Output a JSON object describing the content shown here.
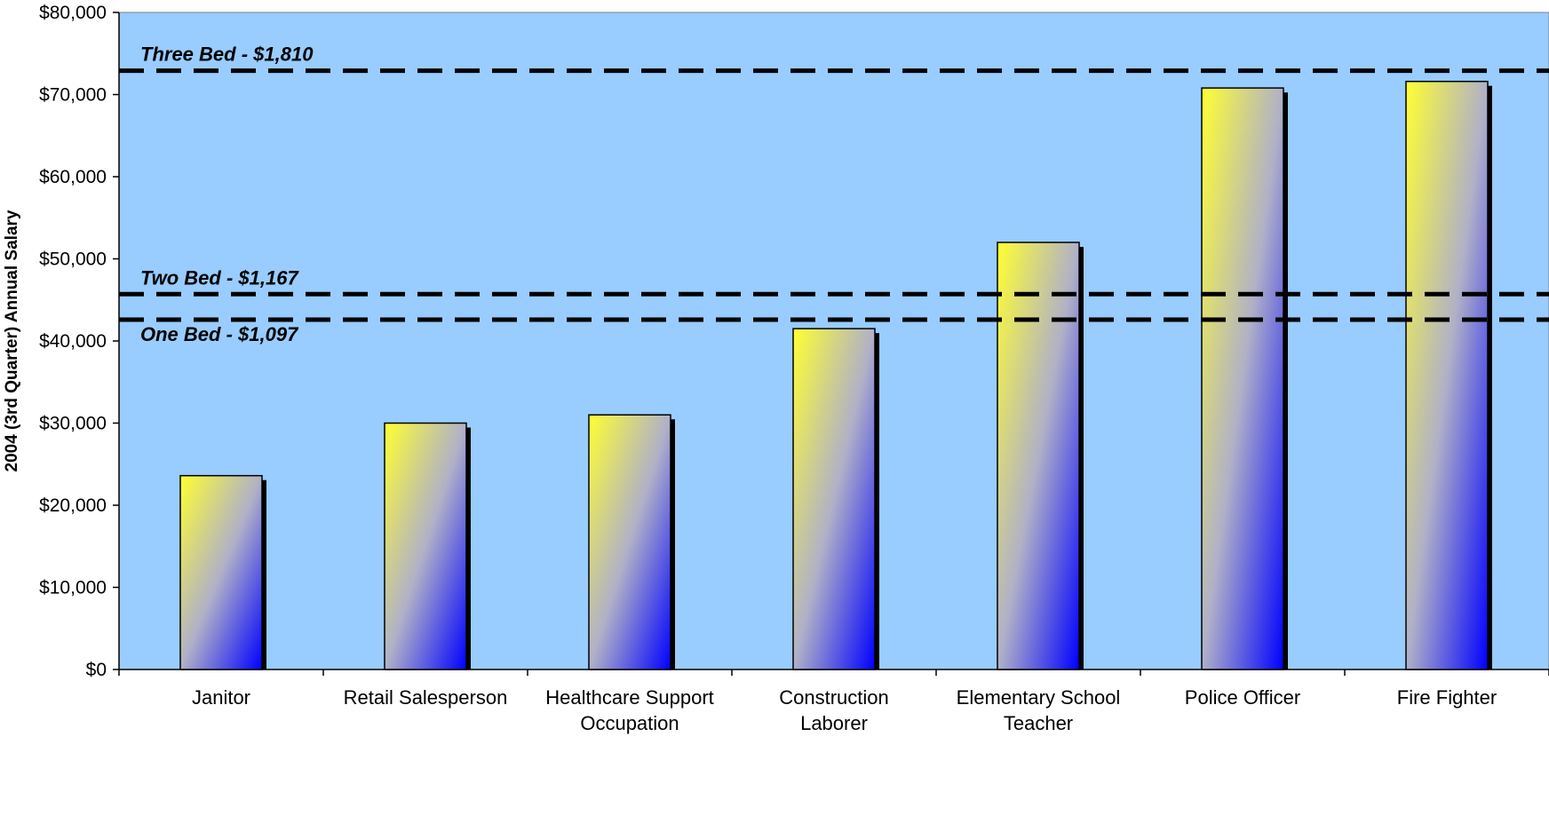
{
  "chart_data": {
    "type": "bar",
    "title": "",
    "xlabel": "",
    "ylabel": "2004 (3rd Quarter) Annual Salary",
    "ylim": [
      0,
      80000
    ],
    "yticks": [
      0,
      10000,
      20000,
      30000,
      40000,
      50000,
      60000,
      70000,
      80000
    ],
    "ytick_labels": [
      "$0",
      "$10,000",
      "$20,000",
      "$30,000",
      "$40,000",
      "$50,000",
      "$60,000",
      "$70,000",
      "$80,000"
    ],
    "categories": [
      [
        "Janitor"
      ],
      [
        "Retail Salesperson"
      ],
      [
        "Healthcare Support",
        "Occupation"
      ],
      [
        "Construction",
        "Laborer"
      ],
      [
        "Elementary School",
        "Teacher"
      ],
      [
        "Police Officer"
      ],
      [
        "Fire Fighter"
      ]
    ],
    "values": [
      23600,
      30000,
      31000,
      41500,
      52000,
      70800,
      71600
    ],
    "reference_lines": [
      {
        "label": "Three Bed - $1,810",
        "value": 72900,
        "label_position": "above"
      },
      {
        "label": "Two Bed - $1,167",
        "value": 45700,
        "label_position": "above"
      },
      {
        "label": "One Bed - $1,097",
        "value": 42600,
        "label_position": "below"
      }
    ],
    "grid": false,
    "legend": "none",
    "colors": {
      "plot_background": "#99ccff",
      "bar_gradient_start": "#ffff33",
      "bar_gradient_mid": "#b0b0c8",
      "bar_gradient_end": "#0000ff",
      "bar_shadow": "#000000",
      "reference_line": "#000000"
    }
  }
}
